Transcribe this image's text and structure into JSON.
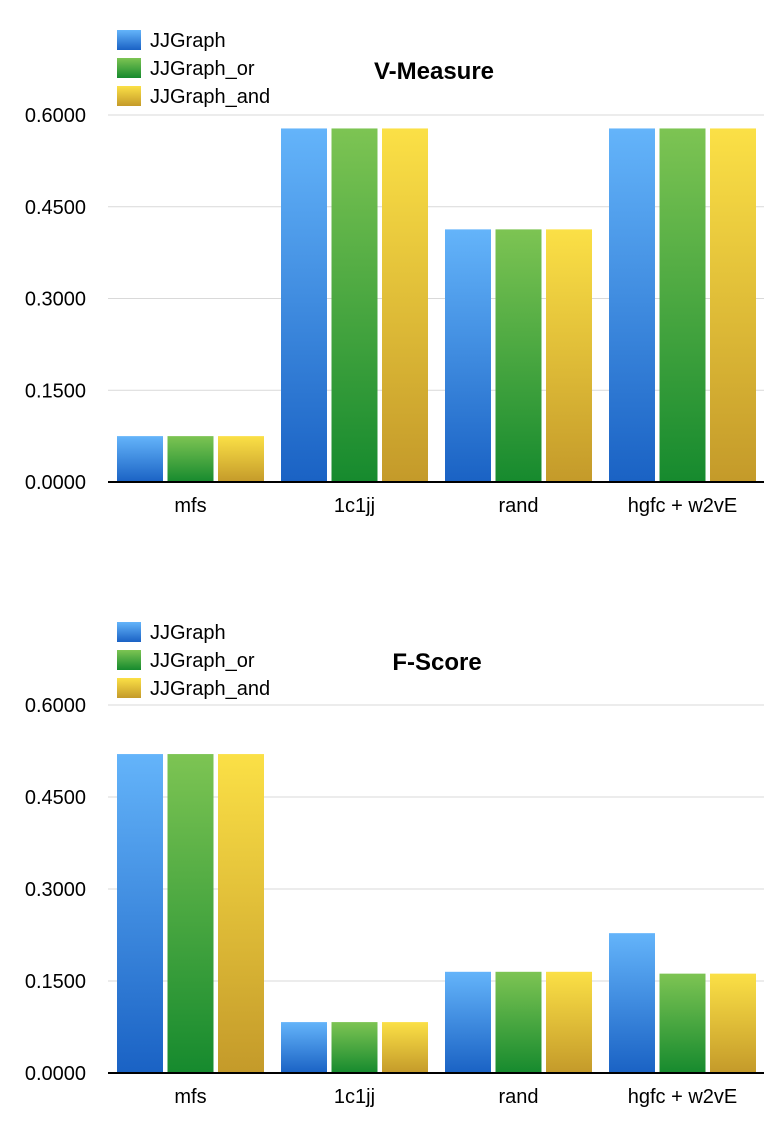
{
  "colors": {
    "JJGraph": [
      "#64b4fa",
      "#1a62c4"
    ],
    "JJGraph_or": [
      "#7dc453",
      "#168a2e"
    ],
    "JJGraph_and": [
      "#fbe046",
      "#c49a2a"
    ],
    "grid": "#d9d9d9",
    "axis": "#000000"
  },
  "chart_data": [
    {
      "type": "bar",
      "title": "V-Measure",
      "categories": [
        "mfs",
        "1c1jj",
        "rand",
        "hgfc + w2vE"
      ],
      "series": [
        {
          "name": "JJGraph",
          "values": [
            0.075,
            0.578,
            0.413,
            0.578
          ]
        },
        {
          "name": "JJGraph_or",
          "values": [
            0.075,
            0.578,
            0.413,
            0.578
          ]
        },
        {
          "name": "JJGraph_and",
          "values": [
            0.075,
            0.578,
            0.413,
            0.578
          ]
        }
      ],
      "yticks": [
        "0.0000",
        "0.1500",
        "0.3000",
        "0.4500",
        "0.6000"
      ],
      "ylim": [
        0,
        0.6
      ],
      "grid": true,
      "legend_position": "top-left"
    },
    {
      "type": "bar",
      "title": "F-Score",
      "categories": [
        "mfs",
        "1c1jj",
        "rand",
        "hgfc + w2vE"
      ],
      "series": [
        {
          "name": "JJGraph",
          "values": [
            0.52,
            0.083,
            0.165,
            0.228
          ]
        },
        {
          "name": "JJGraph_or",
          "values": [
            0.52,
            0.083,
            0.165,
            0.162
          ]
        },
        {
          "name": "JJGraph_and",
          "values": [
            0.52,
            0.083,
            0.165,
            0.162
          ]
        }
      ],
      "yticks": [
        "0.0000",
        "0.1500",
        "0.3000",
        "0.4500",
        "0.6000"
      ],
      "ylim": [
        0,
        0.6
      ],
      "grid": true,
      "legend_position": "top-left"
    }
  ]
}
